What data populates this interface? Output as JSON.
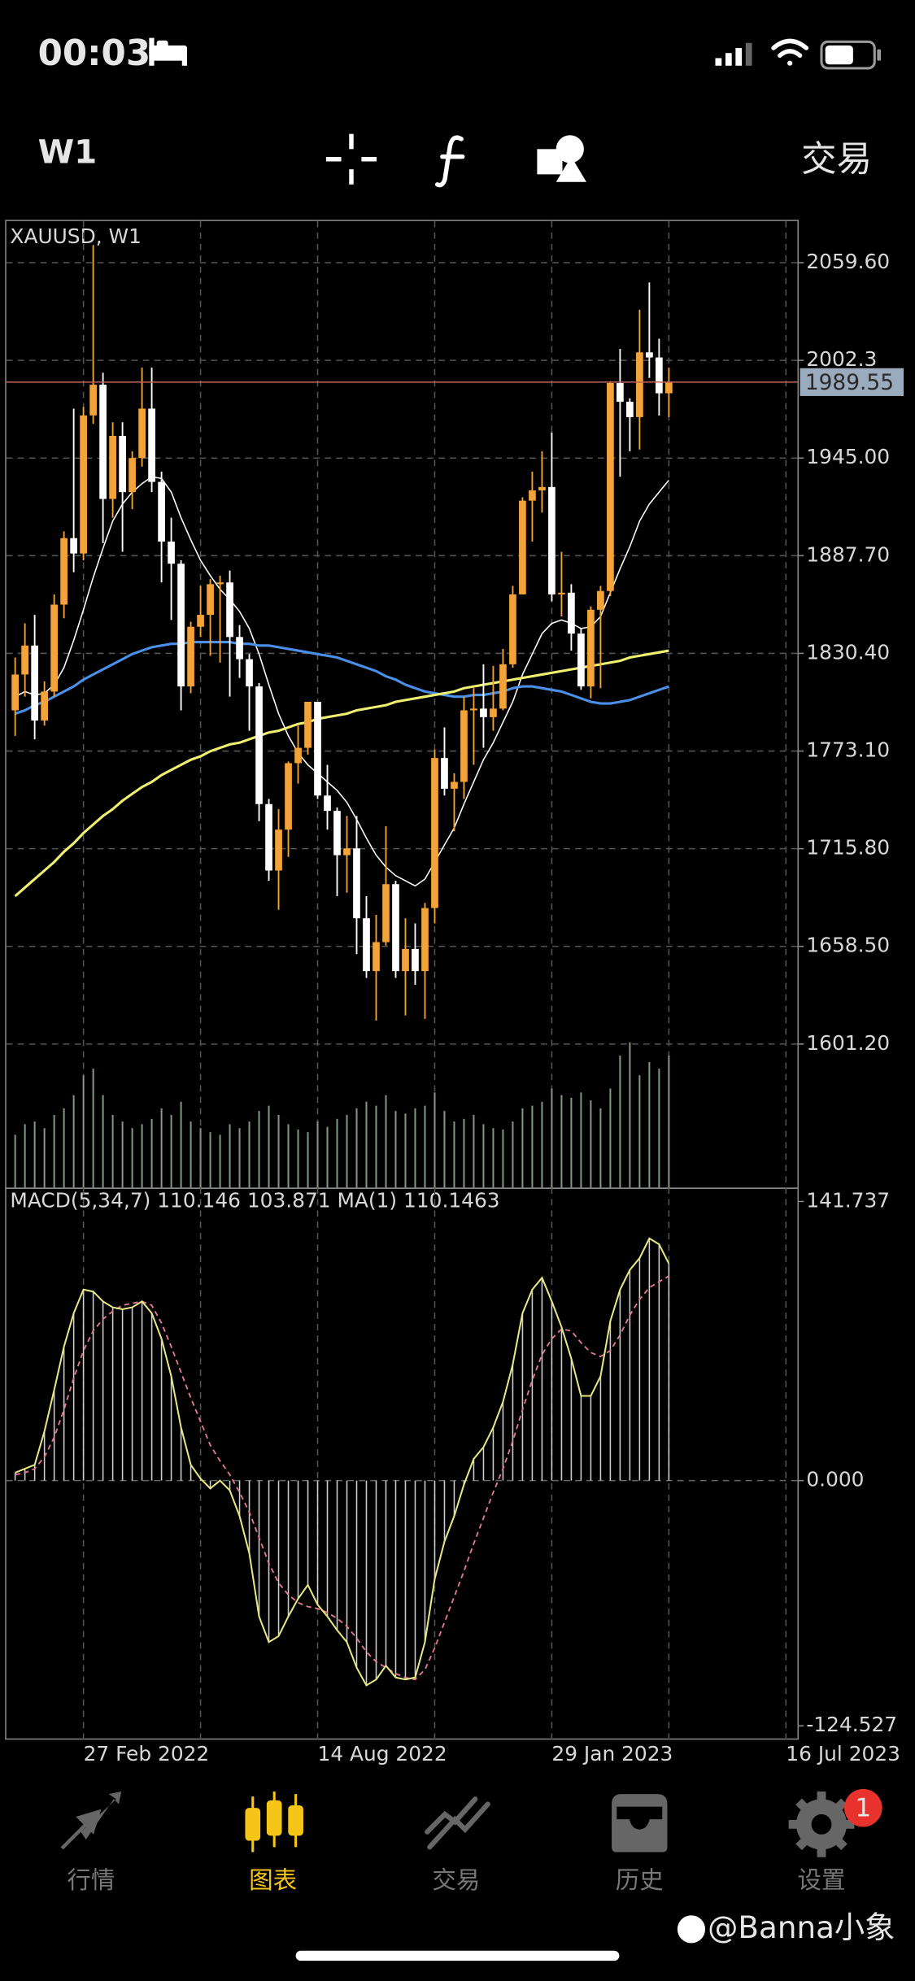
{
  "status_bar": {
    "time": "00:03"
  },
  "toolbar": {
    "timeframe": "W1",
    "trade": "交易"
  },
  "chart_data": {
    "type": "candlestick",
    "title": "XAUUSD, W1",
    "categories": [
      null,
      null,
      null,
      null,
      null,
      null,
      null,
      "27 Feb 2022",
      null,
      null,
      null,
      null,
      null,
      null,
      null,
      null,
      null,
      null,
      null,
      null,
      null,
      null,
      null,
      null,
      null,
      null,
      null,
      null,
      null,
      null,
      null,
      "14 Aug 2022",
      null,
      null,
      null,
      null,
      null,
      null,
      null,
      null,
      null,
      null,
      null,
      null,
      null,
      null,
      null,
      null,
      null,
      null,
      null,
      null,
      null,
      null,
      null,
      "29 Jan 2023",
      null,
      null,
      null,
      null,
      null,
      null,
      null,
      null,
      null,
      null,
      null,
      null
    ],
    "x_end_label": "16 Jul 2023",
    "candles": [
      [
        1797,
        1828,
        1782,
        1818
      ],
      [
        1818,
        1848,
        1805,
        1835
      ],
      [
        1835,
        1853,
        1780,
        1791
      ],
      [
        1791,
        1814,
        1788,
        1808
      ],
      [
        1808,
        1865,
        1805,
        1859
      ],
      [
        1859,
        1902,
        1851,
        1898
      ],
      [
        1898,
        1974,
        1878,
        1889
      ],
      [
        1889,
        1975,
        1885,
        1970
      ],
      [
        1970,
        2070,
        1965,
        1988
      ],
      [
        1988,
        1995,
        1895,
        1921
      ],
      [
        1921,
        1966,
        1910,
        1958
      ],
      [
        1958,
        1966,
        1890,
        1925
      ],
      [
        1925,
        1949,
        1915,
        1945
      ],
      [
        1945,
        1998,
        1940,
        1974
      ],
      [
        1974,
        1998,
        1925,
        1931
      ],
      [
        1931,
        1937,
        1872,
        1896
      ],
      [
        1896,
        1910,
        1850,
        1883
      ],
      [
        1883,
        1885,
        1797,
        1811
      ],
      [
        1811,
        1849,
        1807,
        1846
      ],
      [
        1846,
        1870,
        1840,
        1853
      ],
      [
        1853,
        1874,
        1829,
        1871
      ],
      [
        1871,
        1876,
        1825,
        1872
      ],
      [
        1872,
        1879,
        1805,
        1840
      ],
      [
        1840,
        1847,
        1816,
        1827
      ],
      [
        1827,
        1830,
        1785,
        1811
      ],
      [
        1811,
        1813,
        1732,
        1742
      ],
      [
        1742,
        1745,
        1697,
        1703
      ],
      [
        1703,
        1739,
        1680,
        1727
      ],
      [
        1727,
        1767,
        1711,
        1766
      ],
      [
        1766,
        1788,
        1754,
        1775
      ],
      [
        1775,
        1802,
        1771,
        1802
      ],
      [
        1802,
        1802,
        1745,
        1747
      ],
      [
        1747,
        1765,
        1727,
        1738
      ],
      [
        1738,
        1740,
        1688,
        1712
      ],
      [
        1712,
        1735,
        1690,
        1716
      ],
      [
        1716,
        1735,
        1654,
        1675
      ],
      [
        1675,
        1688,
        1640,
        1644
      ],
      [
        1644,
        1677,
        1615,
        1661
      ],
      [
        1661,
        1729,
        1659,
        1695
      ],
      [
        1695,
        1697,
        1640,
        1644
      ],
      [
        1644,
        1675,
        1618,
        1657
      ],
      [
        1657,
        1672,
        1636,
        1644
      ],
      [
        1644,
        1684,
        1616,
        1681
      ],
      [
        1681,
        1774,
        1672,
        1769
      ],
      [
        1769,
        1787,
        1747,
        1751
      ],
      [
        1751,
        1760,
        1726,
        1755
      ],
      [
        1755,
        1805,
        1745,
        1797
      ],
      [
        1797,
        1810,
        1765,
        1798
      ],
      [
        1798,
        1824,
        1775,
        1793
      ],
      [
        1793,
        1823,
        1785,
        1798
      ],
      [
        1798,
        1833,
        1797,
        1824
      ],
      [
        1824,
        1870,
        1822,
        1865
      ],
      [
        1865,
        1922,
        1865,
        1920
      ],
      [
        1920,
        1937,
        1896,
        1926
      ],
      [
        1926,
        1949,
        1913,
        1928
      ],
      [
        1928,
        1960,
        1861,
        1865
      ],
      [
        1865,
        1890,
        1852,
        1866
      ],
      [
        1866,
        1871,
        1832,
        1842
      ],
      [
        1842,
        1845,
        1809,
        1811
      ],
      [
        1811,
        1858,
        1804,
        1856
      ],
      [
        1856,
        1870,
        1810,
        1867
      ],
      [
        1867,
        1990,
        1864,
        1989
      ],
      [
        1989,
        2009,
        1934,
        1978
      ],
      [
        1978,
        1980,
        1949,
        1969
      ],
      [
        1969,
        2032,
        1950,
        2007
      ],
      [
        2007,
        2048,
        1992,
        2004
      ],
      [
        2004,
        2015,
        1970,
        1983
      ],
      [
        1983,
        1998,
        1969,
        1989.55
      ]
    ],
    "up_color": "#f2a33a",
    "down_color": "#ffffff",
    "ylim": [
      1517,
      2084
    ],
    "yticks": [
      {
        "value": 2059.6,
        "label": "2059.60"
      },
      2002.3,
      {
        "value": 1945,
        "label": "1945.00"
      },
      {
        "value": 1887.7,
        "label": "1887.70"
      },
      {
        "value": 1830.4,
        "label": "1830.40"
      },
      {
        "value": 1773.1,
        "label": "1773.10"
      },
      {
        "value": 1715.8,
        "label": "1715.80"
      },
      {
        "value": 1658.5,
        "label": "1658.50"
      },
      {
        "value": 1601.2,
        "label": "1601.20"
      }
    ],
    "grid": true,
    "current_price": 1989.55,
    "moving_averages": [
      {
        "color": "#ffffff",
        "values": [
          1805,
          1808,
          1806,
          1807,
          1812,
          1822,
          1838,
          1856,
          1875,
          1892,
          1908,
          1918,
          1925,
          1930,
          1934,
          1933,
          1925,
          1910,
          1897,
          1885,
          1876,
          1868,
          1862,
          1855,
          1845,
          1830,
          1812,
          1795,
          1782,
          1772,
          1765,
          1760,
          1755,
          1750,
          1743,
          1733,
          1722,
          1712,
          1705,
          1700,
          1697,
          1694,
          1698,
          1708,
          1718,
          1728,
          1742,
          1755,
          1768,
          1778,
          1790,
          1802,
          1818,
          1830,
          1842,
          1848,
          1850,
          1848,
          1845,
          1846,
          1852,
          1866,
          1880,
          1893,
          1908,
          1918,
          1925,
          1932
        ]
      },
      {
        "color": "#4a8fe8",
        "values": [
          1795,
          1797,
          1800,
          1802,
          1805,
          1808,
          1811,
          1815,
          1818,
          1821,
          1824,
          1827,
          1830,
          1832,
          1834,
          1835,
          1836,
          1836,
          1837,
          1837,
          1837,
          1837,
          1837,
          1836,
          1836,
          1835,
          1835,
          1834,
          1833,
          1832,
          1831,
          1830,
          1829,
          1828,
          1826,
          1824,
          1822,
          1820,
          1817,
          1815,
          1812,
          1810,
          1808,
          1807,
          1806,
          1805,
          1805,
          1806,
          1806,
          1807,
          1808,
          1810,
          1811,
          1811,
          1810,
          1809,
          1808,
          1806,
          1804,
          1802,
          1801,
          1801,
          1802,
          1803,
          1805,
          1807,
          1809,
          1811
        ]
      },
      {
        "color": "#f0f070",
        "values": [
          1688,
          1693,
          1698,
          1703,
          1708,
          1714,
          1719,
          1725,
          1730,
          1735,
          1739,
          1744,
          1748,
          1752,
          1755,
          1759,
          1762,
          1765,
          1768,
          1770,
          1773,
          1775,
          1777,
          1778,
          1780,
          1782,
          1784,
          1785,
          1787,
          1789,
          1790,
          1792,
          1793,
          1794,
          1795,
          1797,
          1798,
          1799,
          1800,
          1802,
          1803,
          1804,
          1805,
          1806,
          1807,
          1808,
          1810,
          1811,
          1812,
          1813,
          1814,
          1815,
          1816,
          1817,
          1818,
          1819,
          1820,
          1821,
          1822,
          1823,
          1824,
          1825,
          1826,
          1828,
          1829,
          1830,
          1831,
          1832
        ]
      }
    ],
    "volume": {
      "color": "#7f9a7f",
      "values": [
        40,
        48,
        50,
        45,
        55,
        60,
        70,
        85,
        90,
        70,
        55,
        50,
        45,
        48,
        52,
        60,
        55,
        65,
        50,
        45,
        42,
        40,
        48,
        45,
        50,
        58,
        62,
        55,
        48,
        44,
        42,
        50,
        46,
        52,
        55,
        60,
        65,
        62,
        70,
        58,
        56,
        60,
        62,
        72,
        58,
        50,
        52,
        55,
        48,
        45,
        44,
        50,
        60,
        62,
        65,
        75,
        70,
        68,
        72,
        66,
        60,
        75,
        100,
        110,
        85,
        95,
        90,
        100
      ]
    },
    "macd": {
      "title": "MACD(5,34,7) 110.146 103.871 MA(1) 110.1463",
      "ylim": [
        -124.527,
        141.737
      ],
      "yticks": [
        141.737,
        {
          "value": 0,
          "label": "0.000"
        },
        -124.527
      ],
      "histogram_color": "#cfcfcf",
      "line_color": "#e8e880",
      "signal_color": "#e07890",
      "values": [
        4,
        6,
        8,
        25,
        46,
        68,
        85,
        97,
        96,
        91,
        88,
        87,
        88,
        91,
        85,
        72,
        53,
        27,
        8,
        1,
        -4,
        0,
        -5,
        -18,
        -37,
        -69,
        -82,
        -79,
        -69,
        -60,
        -53,
        -63,
        -69,
        -76,
        -82,
        -95,
        -104,
        -101,
        -94,
        -100,
        -101,
        -100,
        -82,
        -50,
        -31,
        -18,
        -2,
        11,
        17,
        27,
        40,
        59,
        85,
        97,
        103,
        91,
        78,
        62,
        43,
        43,
        53,
        81,
        97,
        107,
        113,
        123,
        120,
        110.146
      ],
      "signal": [
        3,
        4,
        6,
        12,
        22,
        36,
        52,
        66,
        76,
        82,
        86,
        89,
        90,
        91,
        89,
        80,
        68,
        55,
        42,
        30,
        18,
        10,
        3,
        -6,
        -16,
        -29,
        -42,
        -52,
        -58,
        -62,
        -64,
        -65,
        -67,
        -70,
        -74,
        -80,
        -87,
        -92,
        -95,
        -98,
        -100,
        -101,
        -96,
        -85,
        -72,
        -59,
        -46,
        -32,
        -19,
        -6,
        6,
        20,
        36,
        51,
        64,
        72,
        77,
        76,
        70,
        65,
        63,
        66,
        74,
        84,
        92,
        98,
        101,
        103.871
      ]
    }
  },
  "tab_bar": {
    "tabs": [
      "行情",
      "图表",
      "交易",
      "历史",
      "设置"
    ],
    "active_color": "#f5c518",
    "badge": "1"
  },
  "watermark": "@Banna小象"
}
